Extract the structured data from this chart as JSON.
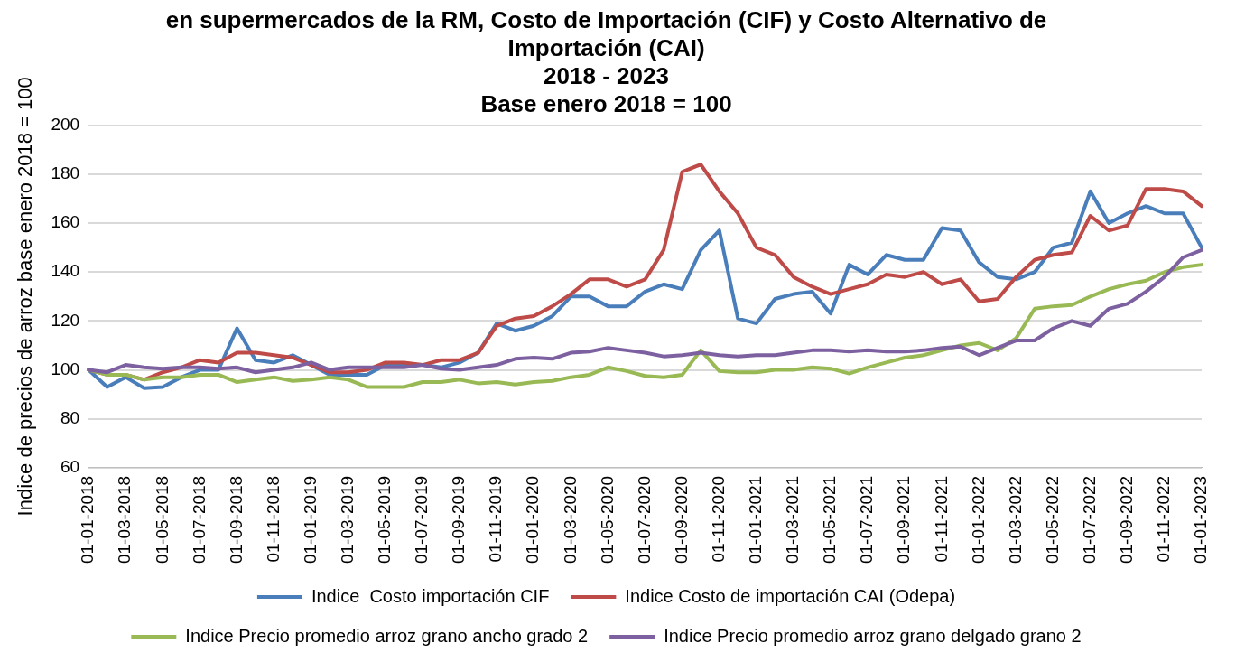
{
  "chart_data": {
    "type": "line",
    "title": [
      "en supermercados de la RM, Costo de Importación (CIF) y Costo Alternativo de",
      "Importación (CAI)",
      "2018 - 2023",
      "Base enero 2018 = 100"
    ],
    "ylabel": "Indice de precios de arroz base enero 2018 = 100",
    "categories": [
      "01-01-2018",
      null,
      "01-03-2018",
      null,
      "01-05-2018",
      null,
      "01-07-2018",
      null,
      "01-09-2018",
      null,
      "01-11-2018",
      null,
      "01-01-2019",
      null,
      "01-03-2019",
      null,
      "01-05-2019",
      null,
      "01-07-2019",
      null,
      "01-09-2019",
      null,
      "01-11-2019",
      null,
      "01-01-2020",
      null,
      "01-03-2020",
      null,
      "01-05-2020",
      null,
      "01-07-2020",
      null,
      "01-09-2020",
      null,
      "01-11-2020",
      null,
      "01-01-2021",
      null,
      "01-03-2021",
      null,
      "01-05-2021",
      null,
      "01-07-2021",
      null,
      "01-09-2021",
      null,
      "01-11-2021",
      null,
      "01-01-2022",
      null,
      "01-03-2022",
      null,
      "01-05-2022",
      null,
      "01-07-2022",
      null,
      "01-09-2022",
      null,
      "01-11-2022",
      null,
      "01-01-2023"
    ],
    "series": [
      {
        "name": "Indice  Costo importación CIF",
        "color": "#4a7ebb",
        "values": [
          100,
          93,
          97,
          92.5,
          93,
          97,
          100,
          100,
          117,
          104,
          103,
          106,
          102,
          98,
          98,
          98,
          102,
          102,
          102,
          101,
          103,
          107,
          119,
          116,
          118,
          122,
          130,
          130,
          126,
          126,
          132,
          135,
          133,
          149,
          157,
          121,
          119,
          129,
          131,
          132,
          123,
          143,
          139,
          147,
          145,
          145,
          158,
          157,
          144,
          138,
          137,
          140,
          150,
          152,
          173,
          160,
          164,
          167,
          164,
          164,
          150
        ]
      },
      {
        "name": "Indice Costo de importación CAI (Odepa)",
        "color": "#be4b48",
        "values": [
          100,
          98,
          98,
          96,
          99,
          101,
          104,
          103,
          107,
          107,
          106,
          105,
          102,
          99,
          99,
          100,
          103,
          103,
          102,
          104,
          104,
          107,
          118,
          121,
          122,
          126,
          131,
          137,
          137,
          134,
          137,
          149,
          181,
          184,
          173,
          164,
          150,
          147,
          138,
          134,
          131,
          133,
          135,
          139,
          138,
          140,
          135,
          137,
          128,
          129,
          138,
          145,
          147,
          148,
          163,
          157,
          159,
          174,
          174,
          173,
          167
        ]
      },
      {
        "name": "Indice Precio promedio arroz grano ancho grado 2",
        "color": "#98b954",
        "values": [
          100,
          98,
          98,
          96,
          97,
          97,
          98,
          98,
          95,
          96,
          97,
          95.5,
          96,
          97,
          96,
          93,
          93,
          93,
          95,
          95,
          96,
          94.5,
          95,
          94,
          95,
          95.5,
          97,
          98,
          101,
          99.5,
          97.5,
          97,
          98,
          108,
          99.5,
          99,
          99,
          100,
          100,
          101,
          100.5,
          98.5,
          101,
          103,
          105,
          106,
          108,
          110,
          111,
          108,
          113,
          125,
          126,
          126.5,
          130,
          133,
          135,
          136.5,
          140,
          142,
          143
        ]
      },
      {
        "name": "Indice Precio promedio arroz grano delgado grano 2",
        "color": "#7d60a0",
        "values": [
          100,
          99,
          102,
          101,
          100.5,
          101,
          101,
          100.5,
          101,
          99,
          100,
          101,
          103,
          100,
          101,
          101,
          101,
          101,
          102,
          100.5,
          100,
          101,
          102,
          104.5,
          105,
          104.5,
          107,
          107.5,
          109,
          108,
          107,
          105.5,
          106,
          107,
          106,
          105.5,
          106,
          106,
          107,
          108,
          108,
          107.5,
          108,
          107.5,
          107.5,
          108,
          109,
          109.5,
          106,
          109,
          112,
          112,
          117,
          120,
          118,
          125,
          127,
          132,
          138,
          146,
          149
        ]
      }
    ],
    "ylim": [
      60,
      200
    ],
    "yticks": [
      60,
      80,
      100,
      120,
      140,
      160,
      180,
      200
    ],
    "grid": "y",
    "legend": "bottom",
    "marker": "none",
    "line_style": "solid"
  }
}
